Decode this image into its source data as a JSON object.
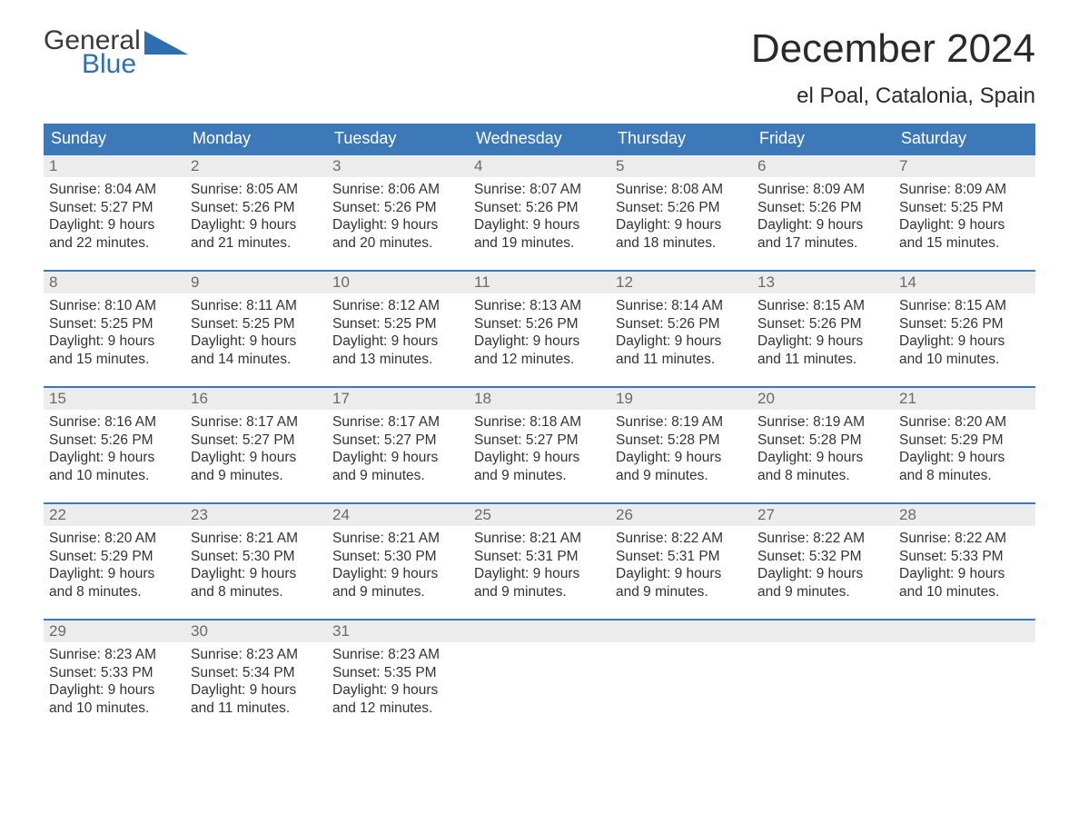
{
  "logo": {
    "top": "General",
    "bottom": "Blue"
  },
  "title": "December 2024",
  "location": "el Poal, Catalonia, Spain",
  "colors": {
    "header_bg": "#3d79b8",
    "header_text": "#ffffff",
    "daynum_bg": "#ececec",
    "daynum_text": "#6a6a6a",
    "body_text": "#333333",
    "week_border": "#3d79b8",
    "logo_top": "#3a3a3a",
    "logo_bottom": "#2f6fb0"
  },
  "day_labels": [
    "Sunday",
    "Monday",
    "Tuesday",
    "Wednesday",
    "Thursday",
    "Friday",
    "Saturday"
  ],
  "weeks": [
    [
      {
        "n": "1",
        "sr": "8:04 AM",
        "ss": "5:27 PM",
        "dl": "9 hours and 22 minutes."
      },
      {
        "n": "2",
        "sr": "8:05 AM",
        "ss": "5:26 PM",
        "dl": "9 hours and 21 minutes."
      },
      {
        "n": "3",
        "sr": "8:06 AM",
        "ss": "5:26 PM",
        "dl": "9 hours and 20 minutes."
      },
      {
        "n": "4",
        "sr": "8:07 AM",
        "ss": "5:26 PM",
        "dl": "9 hours and 19 minutes."
      },
      {
        "n": "5",
        "sr": "8:08 AM",
        "ss": "5:26 PM",
        "dl": "9 hours and 18 minutes."
      },
      {
        "n": "6",
        "sr": "8:09 AM",
        "ss": "5:26 PM",
        "dl": "9 hours and 17 minutes."
      },
      {
        "n": "7",
        "sr": "8:09 AM",
        "ss": "5:25 PM",
        "dl": "9 hours and 15 minutes."
      }
    ],
    [
      {
        "n": "8",
        "sr": "8:10 AM",
        "ss": "5:25 PM",
        "dl": "9 hours and 15 minutes."
      },
      {
        "n": "9",
        "sr": "8:11 AM",
        "ss": "5:25 PM",
        "dl": "9 hours and 14 minutes."
      },
      {
        "n": "10",
        "sr": "8:12 AM",
        "ss": "5:25 PM",
        "dl": "9 hours and 13 minutes."
      },
      {
        "n": "11",
        "sr": "8:13 AM",
        "ss": "5:26 PM",
        "dl": "9 hours and 12 minutes."
      },
      {
        "n": "12",
        "sr": "8:14 AM",
        "ss": "5:26 PM",
        "dl": "9 hours and 11 minutes."
      },
      {
        "n": "13",
        "sr": "8:15 AM",
        "ss": "5:26 PM",
        "dl": "9 hours and 11 minutes."
      },
      {
        "n": "14",
        "sr": "8:15 AM",
        "ss": "5:26 PM",
        "dl": "9 hours and 10 minutes."
      }
    ],
    [
      {
        "n": "15",
        "sr": "8:16 AM",
        "ss": "5:26 PM",
        "dl": "9 hours and 10 minutes."
      },
      {
        "n": "16",
        "sr": "8:17 AM",
        "ss": "5:27 PM",
        "dl": "9 hours and 9 minutes."
      },
      {
        "n": "17",
        "sr": "8:17 AM",
        "ss": "5:27 PM",
        "dl": "9 hours and 9 minutes."
      },
      {
        "n": "18",
        "sr": "8:18 AM",
        "ss": "5:27 PM",
        "dl": "9 hours and 9 minutes."
      },
      {
        "n": "19",
        "sr": "8:19 AM",
        "ss": "5:28 PM",
        "dl": "9 hours and 9 minutes."
      },
      {
        "n": "20",
        "sr": "8:19 AM",
        "ss": "5:28 PM",
        "dl": "9 hours and 8 minutes."
      },
      {
        "n": "21",
        "sr": "8:20 AM",
        "ss": "5:29 PM",
        "dl": "9 hours and 8 minutes."
      }
    ],
    [
      {
        "n": "22",
        "sr": "8:20 AM",
        "ss": "5:29 PM",
        "dl": "9 hours and 8 minutes."
      },
      {
        "n": "23",
        "sr": "8:21 AM",
        "ss": "5:30 PM",
        "dl": "9 hours and 8 minutes."
      },
      {
        "n": "24",
        "sr": "8:21 AM",
        "ss": "5:30 PM",
        "dl": "9 hours and 9 minutes."
      },
      {
        "n": "25",
        "sr": "8:21 AM",
        "ss": "5:31 PM",
        "dl": "9 hours and 9 minutes."
      },
      {
        "n": "26",
        "sr": "8:22 AM",
        "ss": "5:31 PM",
        "dl": "9 hours and 9 minutes."
      },
      {
        "n": "27",
        "sr": "8:22 AM",
        "ss": "5:32 PM",
        "dl": "9 hours and 9 minutes."
      },
      {
        "n": "28",
        "sr": "8:22 AM",
        "ss": "5:33 PM",
        "dl": "9 hours and 10 minutes."
      }
    ],
    [
      {
        "n": "29",
        "sr": "8:23 AM",
        "ss": "5:33 PM",
        "dl": "9 hours and 10 minutes."
      },
      {
        "n": "30",
        "sr": "8:23 AM",
        "ss": "5:34 PM",
        "dl": "9 hours and 11 minutes."
      },
      {
        "n": "31",
        "sr": "8:23 AM",
        "ss": "5:35 PM",
        "dl": "9 hours and 12 minutes."
      },
      null,
      null,
      null,
      null
    ]
  ],
  "labels": {
    "sunrise": "Sunrise:",
    "sunset": "Sunset:",
    "daylight": "Daylight:"
  }
}
